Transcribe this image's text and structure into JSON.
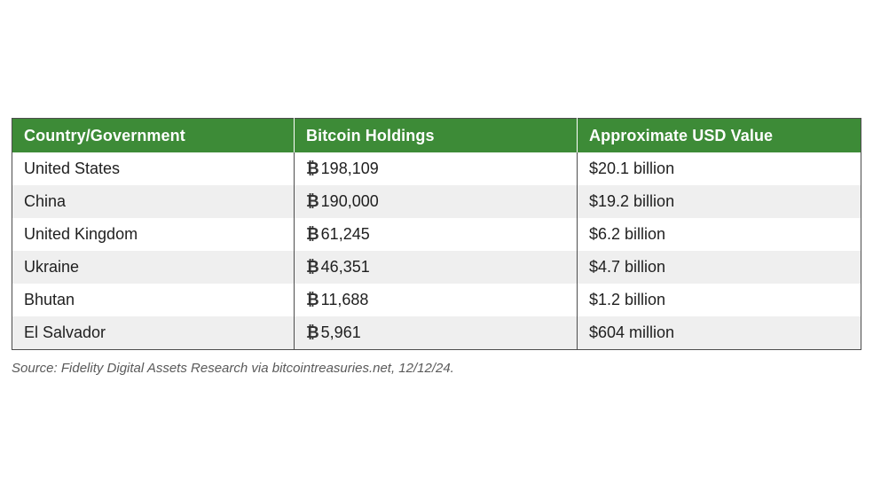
{
  "table": {
    "headers": [
      "Country/Government",
      "Bitcoin Holdings",
      "Approximate USD Value"
    ],
    "currency_symbol": "₿",
    "rows": [
      {
        "country": "United States",
        "holdings": "198,109",
        "usd": "$20.1 billion"
      },
      {
        "country": "China",
        "holdings": "190,000",
        "usd": "$19.2 billion"
      },
      {
        "country": "United Kingdom",
        "holdings": "61,245",
        "usd": "$6.2 billion"
      },
      {
        "country": "Ukraine",
        "holdings": "46,351",
        "usd": "$4.7 billion"
      },
      {
        "country": "Bhutan",
        "holdings": "11,688",
        "usd": "$1.2 billion"
      },
      {
        "country": "El Salvador",
        "holdings": "5,961",
        "usd": "$604 million"
      }
    ]
  },
  "source": "Source: Fidelity Digital Assets Research via bitcointreasuries.net, 12/12/24.",
  "colors": {
    "header_bg": "#3d8b37",
    "stripe": "#efefef"
  },
  "chart_data": {
    "type": "table",
    "columns": [
      "Country/Government",
      "Bitcoin Holdings",
      "Approximate USD Value"
    ],
    "rows": [
      [
        "United States",
        "₿198,109",
        "$20.1 billion"
      ],
      [
        "China",
        "₿190,000",
        "$19.2 billion"
      ],
      [
        "United Kingdom",
        "₿61,245",
        "$6.2 billion"
      ],
      [
        "Ukraine",
        "₿46,351",
        "$4.7 billion"
      ],
      [
        "Bhutan",
        "₿11,688",
        "$1.2 billion"
      ],
      [
        "El Salvador",
        "₿5,961",
        "$604 million"
      ]
    ]
  }
}
